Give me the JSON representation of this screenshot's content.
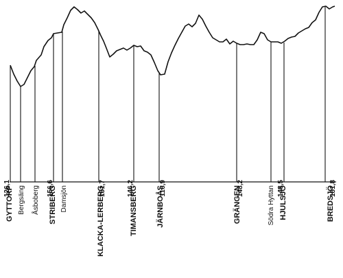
{
  "stations": [
    {
      "name": "GYTTORP",
      "elevation": "126,1",
      "major": true
    },
    {
      "name": "Bergsäng",
      "elevation": "",
      "major": false
    },
    {
      "name": "Åsboberg",
      "elevation": "",
      "major": false
    },
    {
      "name": "STRIBERG",
      "elevation": "156,6",
      "major": true
    },
    {
      "name": "Damsjön",
      "elevation": "",
      "major": false
    },
    {
      "name": "KLACKA-LERBERG",
      "elevation": "151,7",
      "major": true
    },
    {
      "name": "TIMANSBERG",
      "elevation": "146,2",
      "major": true
    },
    {
      "name": "JÄRNBOÅS",
      "elevation": "116,9",
      "major": true
    },
    {
      "name": "GRÄNGEN",
      "elevation": "148,2",
      "major": true
    },
    {
      "name": "Södra Hyttan",
      "elevation": "",
      "major": false
    },
    {
      "name": "HJULSJÖ",
      "elevation": "148,5",
      "major": true
    },
    {
      "name": "BREDSJÖ",
      "elevation": "181,8",
      "major": true
    }
  ]
}
